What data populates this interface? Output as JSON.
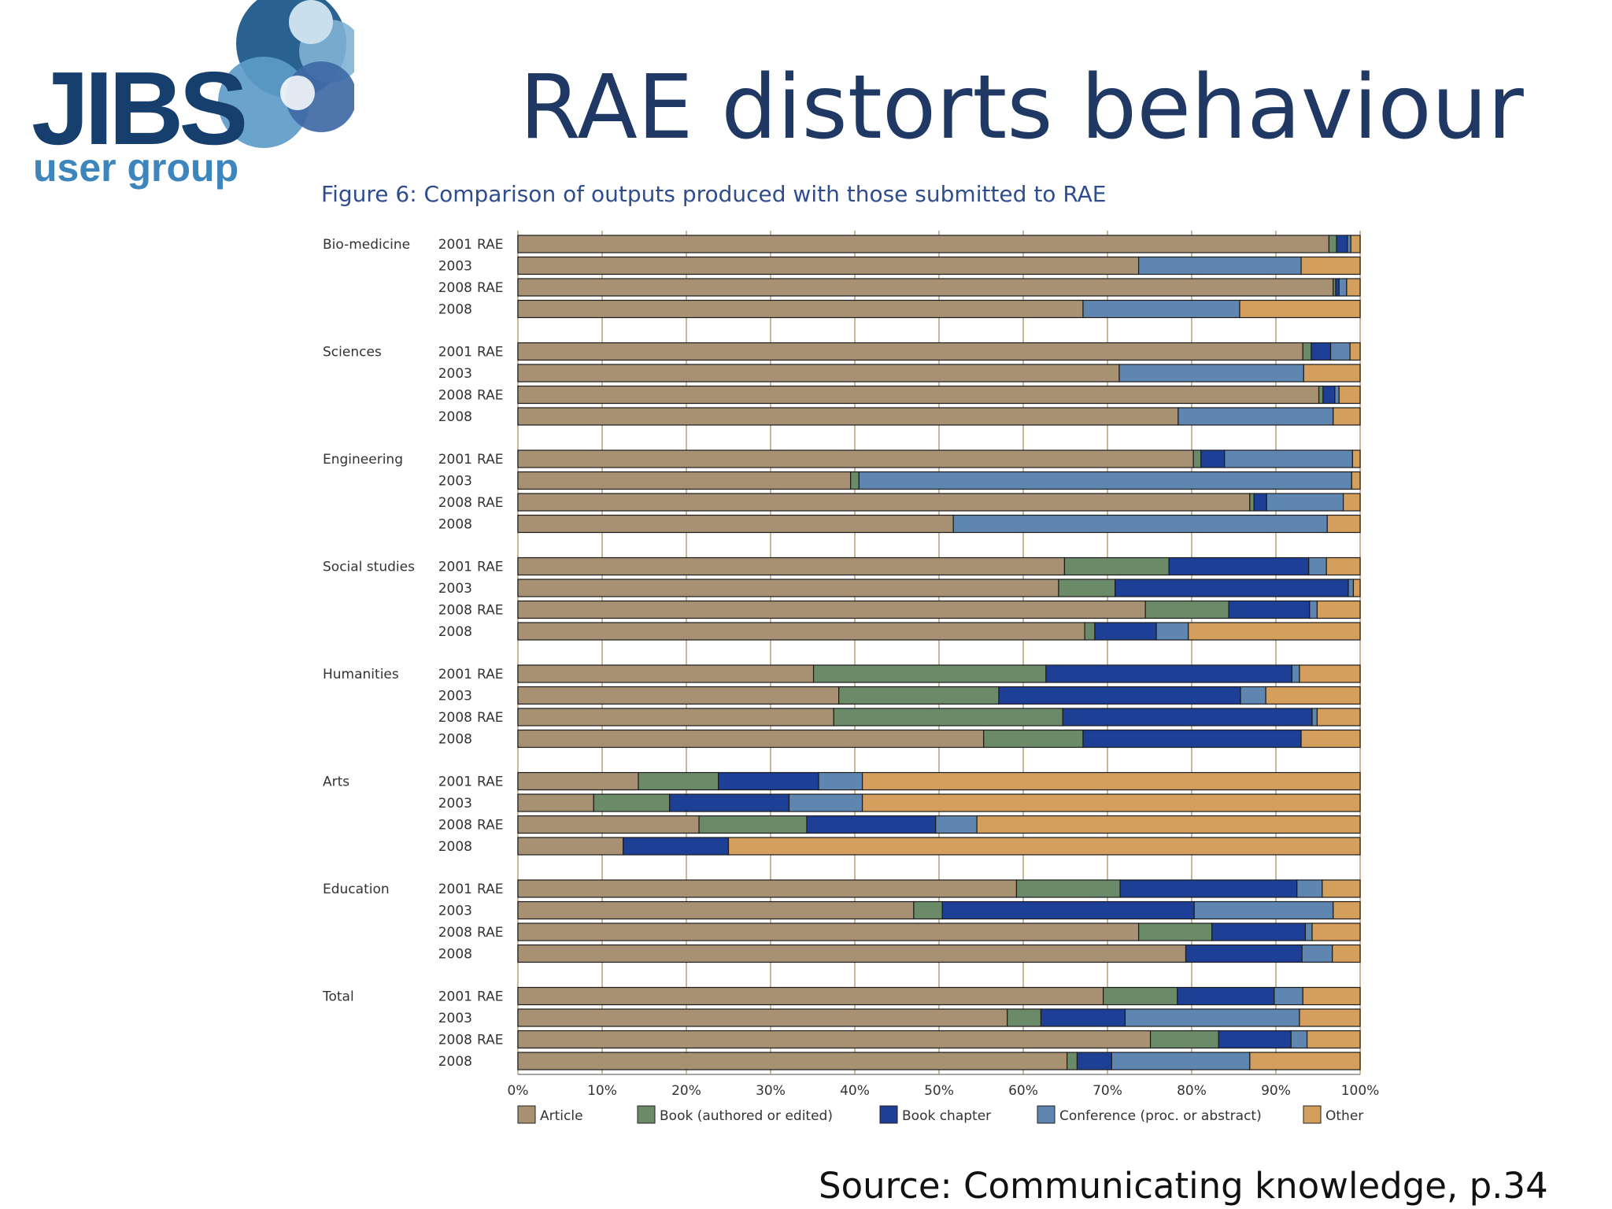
{
  "logo": {
    "name": "JIBS",
    "tagline": "user group"
  },
  "slide": {
    "title": "RAE distorts behaviour",
    "source": "Source: Communicating knowledge, p.34"
  },
  "colors": {
    "Article": "#a89072",
    "Book (authored or edited)": "#6b8a68",
    "Book chapter": "#1d3f96",
    "Conference (proc. or abstract)": "#5f86b0",
    "Other": "#d49e5d"
  },
  "chart_data": {
    "type": "bar",
    "orientation": "horizontal",
    "stacked": "percent",
    "title": "Figure 6: Comparison of outputs produced with those submitted to RAE",
    "xlabel": "",
    "ylabel": "",
    "xlim": [
      0,
      100
    ],
    "x_ticks": [
      "0%",
      "10%",
      "20%",
      "30%",
      "40%",
      "50%",
      "60%",
      "70%",
      "80%",
      "90%",
      "100%"
    ],
    "grid": "vertical",
    "legend_position": "bottom",
    "series_names": [
      "Article",
      "Book (authored or edited)",
      "Book chapter",
      "Conference (proc. or abstract)",
      "Other"
    ],
    "groups": [
      {
        "name": "Bio-medicine",
        "bars": [
          {
            "year": "2001",
            "tag": "RAE",
            "values": [
              96.3,
              0.9,
              1.3,
              0.4,
              1.1
            ]
          },
          {
            "year": "2003",
            "tag": "",
            "values": [
              73.7,
              0,
              0,
              19.3,
              7.0
            ]
          },
          {
            "year": "2008",
            "tag": "RAE",
            "values": [
              96.8,
              0.3,
              0.4,
              0.9,
              1.6
            ]
          },
          {
            "year": "2008",
            "tag": "",
            "values": [
              67.1,
              0,
              0,
              18.6,
              14.3
            ]
          }
        ]
      },
      {
        "name": "Sciences",
        "bars": [
          {
            "year": "2001",
            "tag": "RAE",
            "values": [
              93.2,
              1.0,
              2.3,
              2.3,
              1.2
            ]
          },
          {
            "year": "2003",
            "tag": "",
            "values": [
              71.4,
              0,
              0,
              21.9,
              6.7
            ]
          },
          {
            "year": "2008",
            "tag": "RAE",
            "values": [
              95.1,
              0.5,
              1.4,
              0.5,
              2.5
            ]
          },
          {
            "year": "2008",
            "tag": "",
            "values": [
              78.4,
              0,
              0,
              18.4,
              3.2
            ]
          }
        ]
      },
      {
        "name": "Engineering",
        "bars": [
          {
            "year": "2001",
            "tag": "RAE",
            "values": [
              80.2,
              0.9,
              2.8,
              15.2,
              0.9
            ]
          },
          {
            "year": "2003",
            "tag": "",
            "values": [
              39.5,
              1.0,
              0,
              58.5,
              1.0
            ]
          },
          {
            "year": "2008",
            "tag": "RAE",
            "values": [
              86.9,
              0.5,
              1.5,
              9.1,
              2.0
            ]
          },
          {
            "year": "2008",
            "tag": "",
            "values": [
              51.7,
              0,
              0,
              44.4,
              3.9
            ]
          }
        ]
      },
      {
        "name": "Social studies",
        "bars": [
          {
            "year": "2001",
            "tag": "RAE",
            "values": [
              64.9,
              12.4,
              16.6,
              2.1,
              4.0
            ]
          },
          {
            "year": "2003",
            "tag": "",
            "values": [
              64.2,
              6.7,
              27.7,
              0.6,
              0.8
            ]
          },
          {
            "year": "2008",
            "tag": "RAE",
            "values": [
              74.5,
              9.9,
              9.6,
              0.9,
              5.1
            ]
          },
          {
            "year": "2008",
            "tag": "",
            "values": [
              67.3,
              1.2,
              7.3,
              3.8,
              20.4
            ]
          }
        ]
      },
      {
        "name": "Humanities",
        "bars": [
          {
            "year": "2001",
            "tag": "RAE",
            "values": [
              35.1,
              27.6,
              29.2,
              0.9,
              7.2
            ]
          },
          {
            "year": "2003",
            "tag": "",
            "values": [
              38.1,
              19.0,
              28.7,
              3.0,
              11.2
            ]
          },
          {
            "year": "2008",
            "tag": "RAE",
            "values": [
              37.5,
              27.2,
              29.6,
              0.6,
              5.1
            ]
          },
          {
            "year": "2008",
            "tag": "",
            "values": [
              55.3,
              11.8,
              25.9,
              0,
              7.0
            ]
          }
        ]
      },
      {
        "name": "Arts",
        "bars": [
          {
            "year": "2001",
            "tag": "RAE",
            "values": [
              14.3,
              9.5,
              11.9,
              5.2,
              59.1
            ]
          },
          {
            "year": "2003",
            "tag": "",
            "values": [
              9.0,
              9.0,
              14.2,
              8.7,
              59.1
            ]
          },
          {
            "year": "2008",
            "tag": "RAE",
            "values": [
              21.5,
              12.8,
              15.3,
              4.9,
              45.5
            ]
          },
          {
            "year": "2008",
            "tag": "",
            "values": [
              12.5,
              0,
              12.5,
              0,
              75.0
            ]
          }
        ]
      },
      {
        "name": "Education",
        "bars": [
          {
            "year": "2001",
            "tag": "RAE",
            "values": [
              59.2,
              12.3,
              21.0,
              3.0,
              4.5
            ]
          },
          {
            "year": "2003",
            "tag": "",
            "values": [
              47.0,
              3.4,
              29.9,
              16.5,
              3.2
            ]
          },
          {
            "year": "2008",
            "tag": "RAE",
            "values": [
              73.7,
              8.7,
              11.1,
              0.8,
              5.7
            ]
          },
          {
            "year": "2008",
            "tag": "",
            "values": [
              79.3,
              0,
              13.8,
              3.6,
              3.3
            ]
          }
        ]
      },
      {
        "name": "Total",
        "bars": [
          {
            "year": "2001",
            "tag": "RAE",
            "values": [
              69.5,
              8.8,
              11.5,
              3.4,
              6.8
            ]
          },
          {
            "year": "2003",
            "tag": "",
            "values": [
              58.1,
              4.0,
              10.0,
              20.7,
              7.2
            ]
          },
          {
            "year": "2008",
            "tag": "RAE",
            "values": [
              75.1,
              8.1,
              8.6,
              1.9,
              6.3
            ]
          },
          {
            "year": "2008",
            "tag": "",
            "values": [
              65.2,
              1.2,
              4.1,
              16.4,
              13.1
            ]
          }
        ]
      }
    ]
  }
}
